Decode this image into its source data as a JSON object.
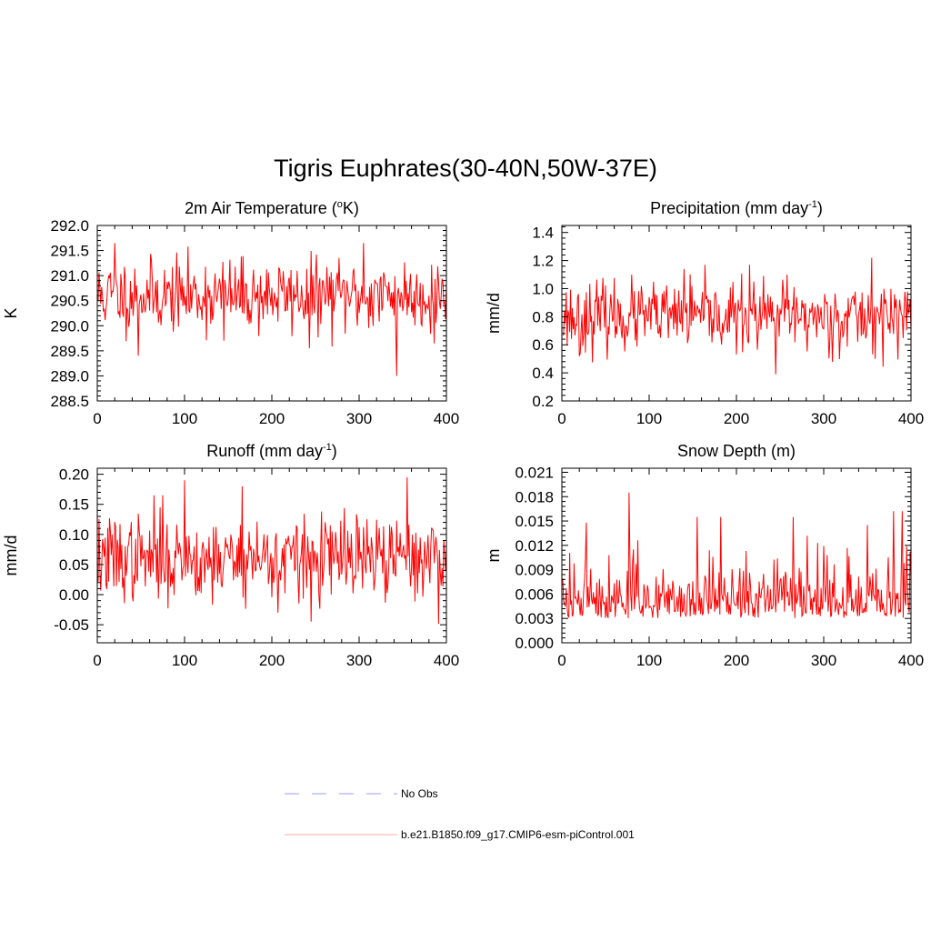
{
  "figure": {
    "title": "Tigris Euphrates(30-40N,50W-37E)"
  },
  "colors": {
    "model_line": "#ff0000",
    "obs_line": "#9999ff",
    "model_legend_line": "#ffaaaa",
    "axis": "#000000"
  },
  "legend": {
    "items": [
      {
        "label": "No Obs",
        "style": "dashed",
        "color": "#9999ff"
      },
      {
        "label": "b.e21.B1850.f09_g17.CMIP6-esm-piControl.001",
        "style": "solid",
        "color": "#ff0000"
      }
    ]
  },
  "chart_data": [
    {
      "type": "line",
      "title_main": "2m Air Temperature (",
      "title_sup": "o",
      "title_tail": "K)",
      "ylabel": "K",
      "xlim": [
        0,
        400
      ],
      "ylim": [
        288.5,
        292.0
      ],
      "xticks": [
        0,
        100,
        200,
        300,
        400
      ],
      "yticks": [
        288.5,
        289.0,
        289.5,
        290.0,
        290.5,
        291.0,
        291.5,
        292.0
      ],
      "ytick_labels": [
        "288.5",
        "289.0",
        "289.5",
        "290.0",
        "290.5",
        "291.0",
        "291.5",
        "292.0"
      ],
      "series": [
        {
          "name": "b.e21.B1850.f09_g17.CMIP6-esm-piControl.001",
          "mean": 290.6,
          "sd": 0.36,
          "seed": 11,
          "x_start": 1,
          "x_end": 400,
          "peaks": [
            [
              20,
              291.65
            ],
            [
              47,
              289.4
            ],
            [
              145,
              289.7
            ],
            [
              243,
              289.55
            ],
            [
              305,
              291.65
            ],
            [
              343,
              289.0
            ],
            [
              386,
              289.65
            ]
          ]
        }
      ]
    },
    {
      "type": "line",
      "title_main": "Precipitation (mm day",
      "title_sup": "-1",
      "title_tail": ")",
      "ylabel": "mm/d",
      "xlim": [
        0,
        400
      ],
      "ylim": [
        0.2,
        1.45
      ],
      "xticks": [
        0,
        100,
        200,
        300,
        400
      ],
      "yticks": [
        0.2,
        0.4,
        0.6,
        0.8,
        1.0,
        1.2,
        1.4
      ],
      "ytick_labels": [
        "0.2",
        "0.4",
        "0.6",
        "0.8",
        "1.0",
        "1.2",
        "1.4"
      ],
      "series": [
        {
          "name": "b.e21.B1850.f09_g17.CMIP6-esm-piControl.001",
          "mean": 0.8,
          "sd": 0.12,
          "seed": 23,
          "x_start": 1,
          "x_end": 400,
          "peaks": [
            [
              140,
              1.14
            ],
            [
              215,
              1.17
            ],
            [
              245,
              0.39
            ],
            [
              258,
              1.1
            ],
            [
              355,
              1.22
            ],
            [
              20,
              0.52
            ]
          ]
        }
      ]
    },
    {
      "type": "line",
      "title_main": "Runoff (mm day",
      "title_sup": "-1",
      "title_tail": ")",
      "ylabel": "mm/d",
      "xlim": [
        0,
        400
      ],
      "ylim": [
        -0.08,
        0.21
      ],
      "xticks": [
        0,
        100,
        200,
        300,
        400
      ],
      "yticks": [
        -0.05,
        0.0,
        0.05,
        0.1,
        0.15,
        0.2
      ],
      "ytick_labels": [
        "-0.05",
        "0.00",
        "0.05",
        "0.10",
        "0.15",
        "0.20"
      ],
      "series": [
        {
          "name": "b.e21.B1850.f09_g17.CMIP6-esm-piControl.001",
          "mean": 0.06,
          "sd": 0.035,
          "seed": 37,
          "x_start": 1,
          "x_end": 400,
          "peaks": [
            [
              100,
              0.19
            ],
            [
              166,
              0.18
            ],
            [
              207,
              -0.03
            ],
            [
              245,
              -0.045
            ],
            [
              355,
              0.195
            ],
            [
              65,
              0.165
            ],
            [
              75,
              0.165
            ]
          ]
        }
      ]
    },
    {
      "type": "line",
      "title_main": "Snow Depth (m)",
      "title_sup": "",
      "title_tail": "",
      "ylabel": "m",
      "xlim": [
        0,
        400
      ],
      "ylim": [
        0.0,
        0.0215
      ],
      "xticks": [
        0,
        100,
        200,
        300,
        400
      ],
      "yticks": [
        0.0,
        0.003,
        0.006,
        0.009,
        0.012,
        0.015,
        0.018,
        0.021
      ],
      "ytick_labels": [
        "0.000",
        "0.003",
        "0.006",
        "0.009",
        "0.012",
        "0.015",
        "0.018",
        "0.021"
      ],
      "series": [
        {
          "name": "b.e21.B1850.f09_g17.CMIP6-esm-piControl.001",
          "mean": 0.0055,
          "sd": 0.0026,
          "seed": 53,
          "x_start": 1,
          "x_end": 400,
          "peaks": [
            [
              77,
              0.0185
            ],
            [
              28,
              0.0148
            ],
            [
              155,
              0.0155
            ],
            [
              182,
              0.0155
            ],
            [
              265,
              0.0155
            ],
            [
              380,
              0.0162
            ],
            [
              390,
              0.0162
            ],
            [
              350,
              0.0145
            ]
          ]
        }
      ]
    }
  ]
}
